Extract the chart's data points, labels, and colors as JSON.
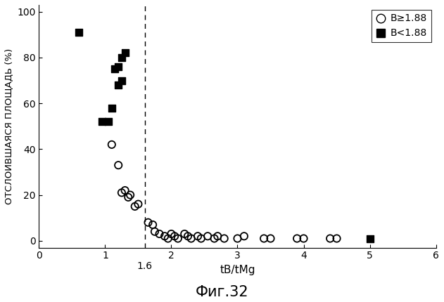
{
  "title": "Фиг.32",
  "xlabel": "tB/tMg",
  "ylabel": "ОТСЛОИВШАЯСЯ ПЛОЩАДЬ (%)",
  "xlim": [
    0,
    6
  ],
  "ylim": [
    -3,
    103
  ],
  "yticks": [
    0,
    20,
    40,
    60,
    80,
    100
  ],
  "xticks": [
    0,
    1,
    2,
    3,
    4,
    5,
    6
  ],
  "vline_x": 1.6,
  "circle_points": [
    [
      1.1,
      42
    ],
    [
      1.2,
      33
    ],
    [
      1.25,
      21
    ],
    [
      1.3,
      22
    ],
    [
      1.35,
      19
    ],
    [
      1.38,
      20
    ],
    [
      1.45,
      15
    ],
    [
      1.5,
      16
    ],
    [
      1.65,
      8
    ],
    [
      1.72,
      7
    ],
    [
      1.75,
      4
    ],
    [
      1.82,
      3
    ],
    [
      1.9,
      2
    ],
    [
      1.95,
      1
    ],
    [
      2.0,
      3
    ],
    [
      2.05,
      2
    ],
    [
      2.1,
      1
    ],
    [
      2.2,
      3
    ],
    [
      2.25,
      2
    ],
    [
      2.3,
      1
    ],
    [
      2.4,
      2
    ],
    [
      2.45,
      1
    ],
    [
      2.55,
      2
    ],
    [
      2.65,
      1
    ],
    [
      2.7,
      2
    ],
    [
      2.8,
      1
    ],
    [
      3.0,
      1
    ],
    [
      3.1,
      2
    ],
    [
      3.4,
      1
    ],
    [
      3.5,
      1
    ],
    [
      3.9,
      1
    ],
    [
      4.0,
      1
    ],
    [
      4.4,
      1
    ],
    [
      4.5,
      1
    ]
  ],
  "square_points": [
    [
      0.6,
      91
    ],
    [
      0.95,
      52
    ],
    [
      1.05,
      52
    ],
    [
      1.1,
      58
    ],
    [
      1.15,
      75
    ],
    [
      1.2,
      76
    ],
    [
      1.2,
      68
    ],
    [
      1.25,
      70
    ],
    [
      1.25,
      80
    ],
    [
      1.3,
      82
    ]
  ],
  "square_point_outlier": [
    5.0,
    1
  ],
  "legend_circle_label": "B≥1.88",
  "legend_square_label": "B<1.88",
  "marker_size_circle": 55,
  "marker_size_square": 60,
  "marker_size_square_small": 55,
  "background_color": "#ffffff"
}
